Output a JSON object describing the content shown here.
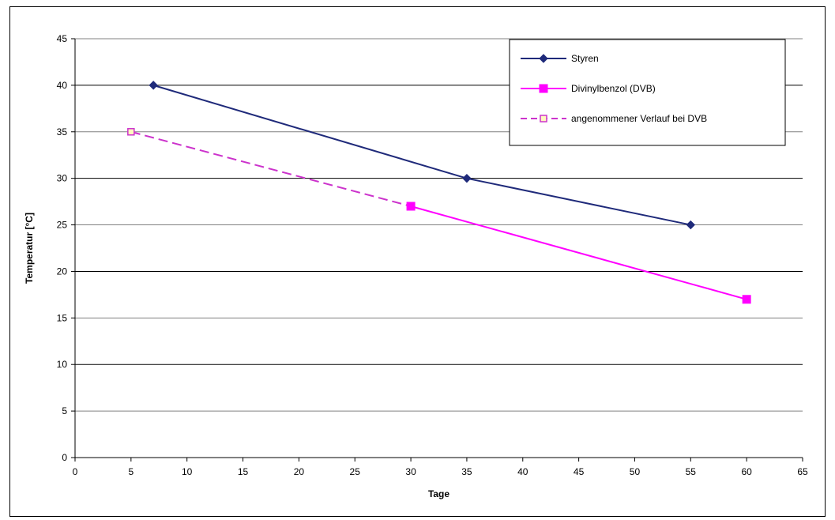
{
  "chart_data": {
    "type": "line",
    "title": "",
    "xlabel": "Tage",
    "ylabel": "Temperatur [°C]",
    "xlim": [
      0,
      65
    ],
    "ylim": [
      0,
      45
    ],
    "x_ticks": [
      "0",
      "5",
      "10",
      "15",
      "20",
      "25",
      "30",
      "35",
      "40",
      "45",
      "50",
      "55",
      "60",
      "65"
    ],
    "y_ticks": [
      "0",
      "5",
      "10",
      "15",
      "20",
      "25",
      "30",
      "35",
      "40",
      "45"
    ],
    "grid": true,
    "legend_position": "top-right",
    "series": [
      {
        "name": "Styren",
        "color": "#1f2a7a",
        "marker": "diamond",
        "line": "solid",
        "x": [
          7,
          35,
          55
        ],
        "y": [
          40,
          30,
          25
        ]
      },
      {
        "name": "Divinylbenzol (DVB)",
        "color": "#ff00ff",
        "marker": "square",
        "line": "solid",
        "x": [
          30,
          60
        ],
        "y": [
          27,
          17
        ]
      },
      {
        "name": "angenommener Verlauf bei DVB",
        "color": "#cc33cc",
        "marker": "open-square",
        "line": "dashed",
        "x": [
          5,
          30
        ],
        "y": [
          35,
          27
        ]
      }
    ]
  }
}
